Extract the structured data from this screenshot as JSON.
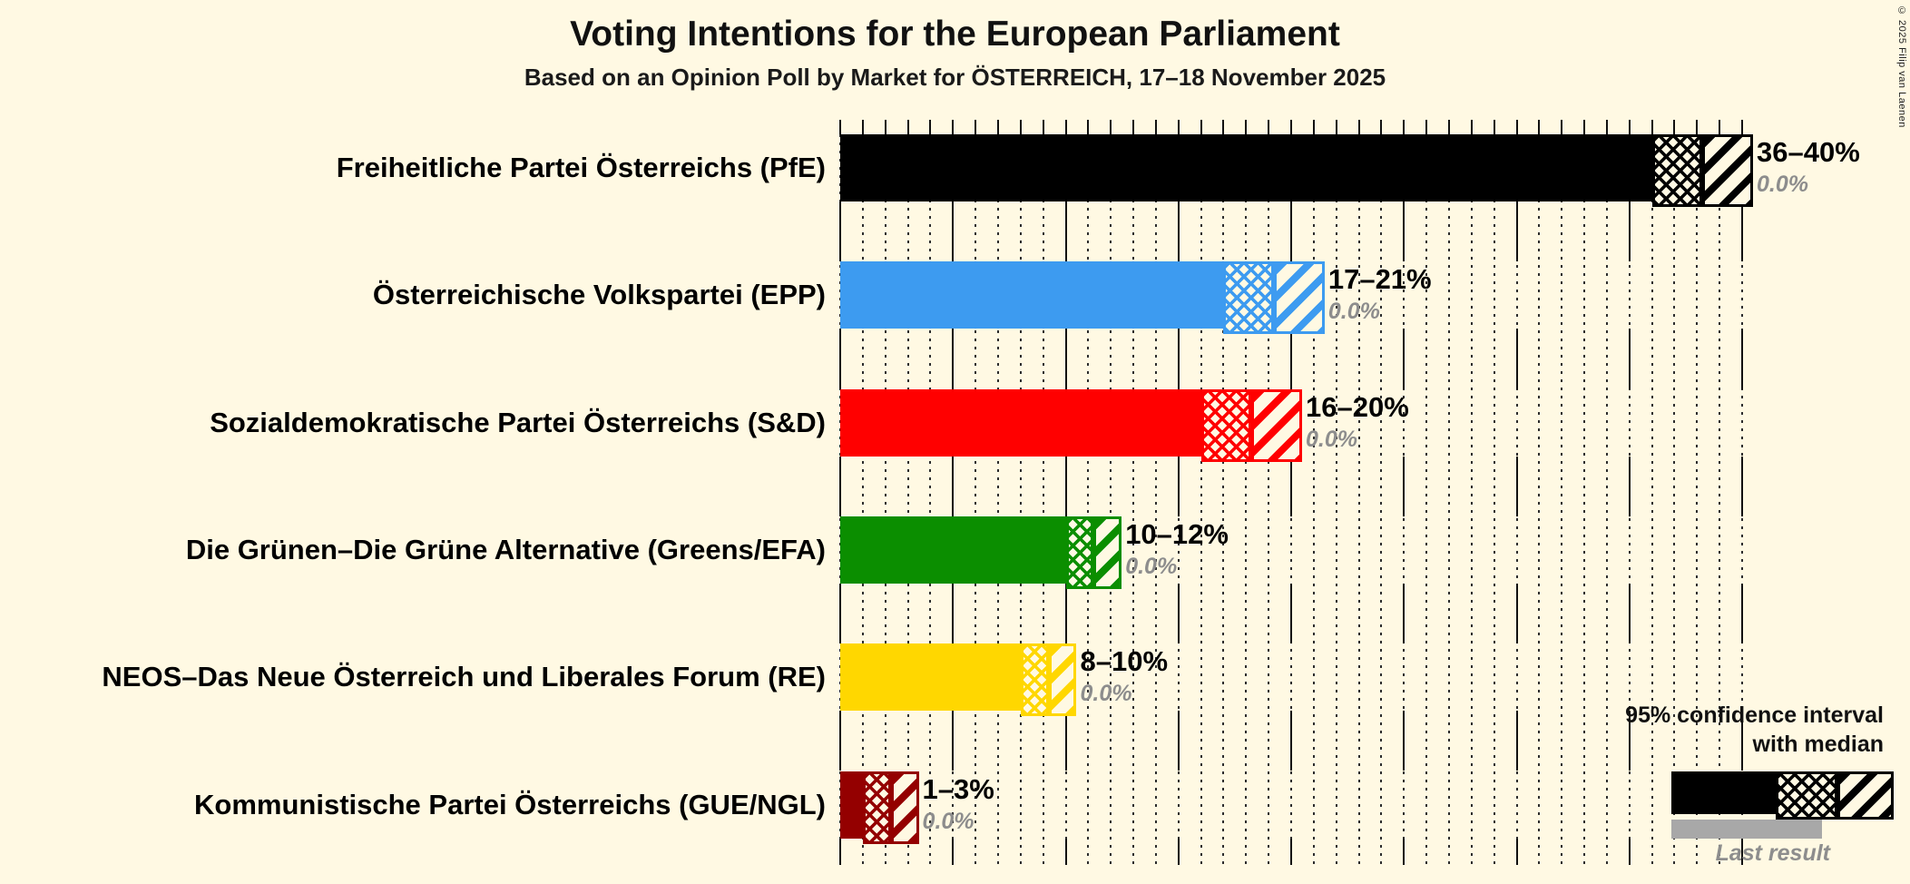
{
  "title": "Voting Intentions for the European Parliament",
  "subtitle": "Based on an Opinion Poll by Market for ÖSTERREICH, 17–18 November 2025",
  "copyright": "© 2025 Filip van Laenen",
  "colors": {
    "background": "#FFF9E3",
    "text": "#111111",
    "muted": "#8d8d8d",
    "last_result_bar": "#A8A8A8",
    "gridline": "#2d2d2d"
  },
  "legend": {
    "ci_line1": "95% confidence interval",
    "ci_line2": "with median",
    "last_result": "Last result",
    "sample": {
      "color": "#000000"
    }
  },
  "chart_data": {
    "type": "bar",
    "orientation": "horizontal",
    "title": "Voting Intentions for the European Parliament",
    "subtitle": "Based on an Opinion Poll by Market for ÖSTERREICH, 17–18 November 2025",
    "x_axis": {
      "min": 0,
      "max": 40,
      "unit": "%",
      "minor_tick_step": 1,
      "major_tick_step": 5,
      "gridlines": "dotted minor, solid major ticks between rows"
    },
    "parties": [
      {
        "name": "Freiheitliche Partei Österreichs (PfE)",
        "color": "#000000",
        "ci_low": 36,
        "median": 38,
        "ci_high": 40,
        "ci_label": "36–40%",
        "last_result": 0.0,
        "last_result_label": "0.0%"
      },
      {
        "name": "Österreichische Volkspartei (EPP)",
        "color": "#3D9BF0",
        "ci_low": 17,
        "median": 19,
        "ci_high": 21,
        "ci_label": "17–21%",
        "last_result": 0.0,
        "last_result_label": "0.0%"
      },
      {
        "name": "Sozialdemokratische Partei Österreichs (S&D)",
        "color": "#FF0000",
        "ci_low": 16,
        "median": 18,
        "ci_high": 20,
        "ci_label": "16–20%",
        "last_result": 0.0,
        "last_result_label": "0.0%"
      },
      {
        "name": "Die Grünen–Die Grüne Alternative (Greens/EFA)",
        "color": "#0B8E00",
        "ci_low": 10,
        "median": 11,
        "ci_high": 12,
        "ci_label": "10–12%",
        "last_result": 0.0,
        "last_result_label": "0.0%"
      },
      {
        "name": "NEOS–Das Neue Österreich und Liberales Forum (RE)",
        "color": "#FFD700",
        "ci_low": 8,
        "median": 9,
        "ci_high": 10,
        "ci_label": "8–10%",
        "last_result": 0.0,
        "last_result_label": "0.0%"
      },
      {
        "name": "Kommunistische Partei Österreichs (GUE/NGL)",
        "color": "#940000",
        "ci_low": 1,
        "median": 2,
        "ci_high": 3,
        "ci_label": "1–3%",
        "last_result": 0.0,
        "last_result_label": "0.0%"
      }
    ]
  }
}
